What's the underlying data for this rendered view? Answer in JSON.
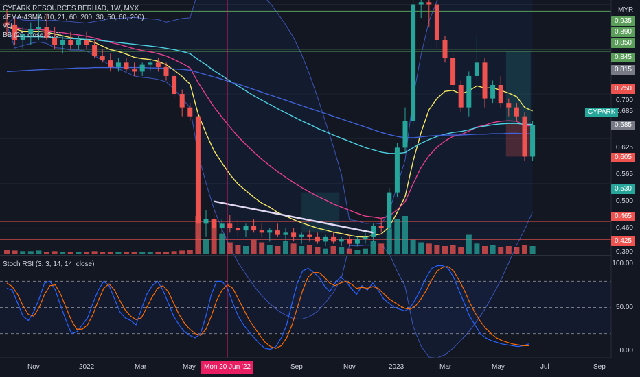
{
  "header": {
    "line1": "CYPARK RESOURCES BERHAD, 1W, MYX",
    "line2": "4EMA-4SMA (10, 21, 60, 200, 30, 50, 60, 200)",
    "line3": "Vol",
    "line4": "BB (20, close, 2, 0)"
  },
  "stoch_label": "Stoch RSI (3, 3, 14, 14, close)",
  "price_axis": {
    "unit": "MYR",
    "ticks": [
      "0.935",
      "0.890",
      "0.850",
      "0.845",
      "0.815",
      "0.750",
      "0.700",
      "0.685",
      "0.685",
      "0.625",
      "0.605",
      "0.565",
      "0.530",
      "0.500",
      "0.465",
      "0.460",
      "0.425",
      "0.390"
    ],
    "symbol_tag": "CYPARK"
  },
  "stoch_axis": {
    "ticks": [
      "100.00",
      "50.00",
      "0.00"
    ]
  },
  "time_axis": {
    "ticks": [
      "Nov",
      "2022",
      "Mar",
      "May",
      "Sep",
      "Nov",
      "2023",
      "Mar",
      "May",
      "Jul",
      "Sep"
    ],
    "crosshair_label": "Mon 20 Jun '22"
  },
  "chart_data": [
    {
      "type": "candlestick",
      "title": "CYPARK RESOURCES BERHAD, 1W, MYX",
      "ylabel": "MYR",
      "ylim": [
        0.39,
        0.96
      ],
      "colors": {
        "up": "#26a69a",
        "down": "#ef5350"
      },
      "candles": [
        {
          "o": 0.91,
          "h": 0.94,
          "l": 0.88,
          "c": 0.905
        },
        {
          "o": 0.905,
          "h": 0.92,
          "l": 0.86,
          "c": 0.87
        },
        {
          "o": 0.87,
          "h": 0.9,
          "l": 0.85,
          "c": 0.885
        },
        {
          "o": 0.885,
          "h": 0.91,
          "l": 0.86,
          "c": 0.895
        },
        {
          "o": 0.895,
          "h": 0.93,
          "l": 0.87,
          "c": 0.9
        },
        {
          "o": 0.9,
          "h": 0.93,
          "l": 0.87,
          "c": 0.875
        },
        {
          "o": 0.875,
          "h": 0.9,
          "l": 0.85,
          "c": 0.86
        },
        {
          "o": 0.86,
          "h": 0.88,
          "l": 0.84,
          "c": 0.87
        },
        {
          "o": 0.87,
          "h": 0.89,
          "l": 0.85,
          "c": 0.86
        },
        {
          "o": 0.86,
          "h": 0.88,
          "l": 0.85,
          "c": 0.87
        },
        {
          "o": 0.87,
          "h": 0.89,
          "l": 0.85,
          "c": 0.86
        },
        {
          "o": 0.86,
          "h": 0.87,
          "l": 0.83,
          "c": 0.835
        },
        {
          "o": 0.835,
          "h": 0.85,
          "l": 0.82,
          "c": 0.825
        },
        {
          "o": 0.825,
          "h": 0.84,
          "l": 0.8,
          "c": 0.81
        },
        {
          "o": 0.81,
          "h": 0.83,
          "l": 0.8,
          "c": 0.82
        },
        {
          "o": 0.82,
          "h": 0.83,
          "l": 0.8,
          "c": 0.805
        },
        {
          "o": 0.805,
          "h": 0.82,
          "l": 0.79,
          "c": 0.8
        },
        {
          "o": 0.8,
          "h": 0.82,
          "l": 0.79,
          "c": 0.815
        },
        {
          "o": 0.815,
          "h": 0.83,
          "l": 0.8,
          "c": 0.82
        },
        {
          "o": 0.82,
          "h": 0.83,
          "l": 0.8,
          "c": 0.81
        },
        {
          "o": 0.81,
          "h": 0.82,
          "l": 0.78,
          "c": 0.79
        },
        {
          "o": 0.79,
          "h": 0.8,
          "l": 0.74,
          "c": 0.75
        },
        {
          "o": 0.75,
          "h": 0.76,
          "l": 0.7,
          "c": 0.72
        },
        {
          "o": 0.72,
          "h": 0.73,
          "l": 0.69,
          "c": 0.7
        },
        {
          "o": 0.7,
          "h": 0.71,
          "l": 0.42,
          "c": 0.46
        },
        {
          "o": 0.46,
          "h": 0.49,
          "l": 0.43,
          "c": 0.47
        },
        {
          "o": 0.47,
          "h": 0.49,
          "l": 0.44,
          "c": 0.45
        },
        {
          "o": 0.45,
          "h": 0.47,
          "l": 0.43,
          "c": 0.46
        },
        {
          "o": 0.46,
          "h": 0.48,
          "l": 0.44,
          "c": 0.45
        },
        {
          "o": 0.45,
          "h": 0.47,
          "l": 0.43,
          "c": 0.445
        },
        {
          "o": 0.445,
          "h": 0.46,
          "l": 0.43,
          "c": 0.455
        },
        {
          "o": 0.455,
          "h": 0.47,
          "l": 0.44,
          "c": 0.445
        },
        {
          "o": 0.445,
          "h": 0.46,
          "l": 0.43,
          "c": 0.44
        },
        {
          "o": 0.44,
          "h": 0.45,
          "l": 0.42,
          "c": 0.445
        },
        {
          "o": 0.445,
          "h": 0.46,
          "l": 0.43,
          "c": 0.435
        },
        {
          "o": 0.435,
          "h": 0.45,
          "l": 0.42,
          "c": 0.44
        },
        {
          "o": 0.44,
          "h": 0.45,
          "l": 0.42,
          "c": 0.43
        },
        {
          "o": 0.43,
          "h": 0.44,
          "l": 0.415,
          "c": 0.435
        },
        {
          "o": 0.435,
          "h": 0.445,
          "l": 0.42,
          "c": 0.43
        },
        {
          "o": 0.43,
          "h": 0.44,
          "l": 0.415,
          "c": 0.42
        },
        {
          "o": 0.42,
          "h": 0.435,
          "l": 0.41,
          "c": 0.43
        },
        {
          "o": 0.43,
          "h": 0.44,
          "l": 0.415,
          "c": 0.42
        },
        {
          "o": 0.42,
          "h": 0.43,
          "l": 0.41,
          "c": 0.425
        },
        {
          "o": 0.425,
          "h": 0.435,
          "l": 0.41,
          "c": 0.415
        },
        {
          "o": 0.415,
          "h": 0.43,
          "l": 0.41,
          "c": 0.425
        },
        {
          "o": 0.425,
          "h": 0.44,
          "l": 0.415,
          "c": 0.43
        },
        {
          "o": 0.43,
          "h": 0.46,
          "l": 0.42,
          "c": 0.455
        },
        {
          "o": 0.455,
          "h": 0.47,
          "l": 0.44,
          "c": 0.45
        },
        {
          "o": 0.45,
          "h": 0.54,
          "l": 0.44,
          "c": 0.53
        },
        {
          "o": 0.53,
          "h": 0.64,
          "l": 0.52,
          "c": 0.63
        },
        {
          "o": 0.63,
          "h": 0.72,
          "l": 0.62,
          "c": 0.69
        },
        {
          "o": 0.69,
          "h": 0.96,
          "l": 0.68,
          "c": 0.95
        },
        {
          "o": 0.95,
          "h": 0.96,
          "l": 0.92,
          "c": 0.955
        },
        {
          "o": 0.955,
          "h": 0.96,
          "l": 0.9,
          "c": 0.95
        },
        {
          "o": 0.95,
          "h": 0.96,
          "l": 0.85,
          "c": 0.87
        },
        {
          "o": 0.87,
          "h": 0.88,
          "l": 0.82,
          "c": 0.83
        },
        {
          "o": 0.83,
          "h": 0.84,
          "l": 0.76,
          "c": 0.77
        },
        {
          "o": 0.77,
          "h": 0.78,
          "l": 0.71,
          "c": 0.72
        },
        {
          "o": 0.72,
          "h": 0.8,
          "l": 0.7,
          "c": 0.79
        },
        {
          "o": 0.79,
          "h": 0.88,
          "l": 0.78,
          "c": 0.82
        },
        {
          "o": 0.82,
          "h": 0.83,
          "l": 0.72,
          "c": 0.74
        },
        {
          "o": 0.74,
          "h": 0.78,
          "l": 0.73,
          "c": 0.77
        },
        {
          "o": 0.77,
          "h": 0.79,
          "l": 0.72,
          "c": 0.73
        },
        {
          "o": 0.73,
          "h": 0.74,
          "l": 0.7,
          "c": 0.72
        },
        {
          "o": 0.72,
          "h": 0.73,
          "l": 0.69,
          "c": 0.7
        },
        {
          "o": 0.7,
          "h": 0.71,
          "l": 0.6,
          "c": 0.61
        },
        {
          "o": 0.61,
          "h": 0.69,
          "l": 0.6,
          "c": 0.68
        }
      ],
      "volume": [
        6,
        5,
        4,
        4,
        5,
        3,
        4,
        3,
        3,
        3,
        3,
        4,
        3,
        3,
        3,
        3,
        3,
        3,
        3,
        3,
        3,
        4,
        5,
        6,
        60,
        24,
        55,
        32,
        18,
        14,
        12,
        22,
        18,
        14,
        12,
        20,
        16,
        12,
        14,
        10,
        8,
        12,
        10,
        8,
        6,
        8,
        20,
        16,
        40,
        55,
        60,
        22,
        18,
        16,
        14,
        12,
        14,
        10,
        30,
        16,
        12,
        14,
        10,
        12,
        10,
        14,
        12
      ],
      "ema": [
        {
          "color": "#f5e663",
          "values": [
            0.9,
            0.895,
            0.89,
            0.89,
            0.89,
            0.888,
            0.884,
            0.88,
            0.876,
            0.873,
            0.87,
            0.865,
            0.857,
            0.849,
            0.845,
            0.839,
            0.832,
            0.829,
            0.827,
            0.823,
            0.815,
            0.803,
            0.789,
            0.772,
            0.706,
            0.662,
            0.623,
            0.596,
            0.57,
            0.549,
            0.534,
            0.519,
            0.506,
            0.497,
            0.485,
            0.477,
            0.469,
            0.462,
            0.456,
            0.45,
            0.446,
            0.441,
            0.438,
            0.434,
            0.431,
            0.43,
            0.434,
            0.437,
            0.453,
            0.485,
            0.521,
            0.6,
            0.664,
            0.715,
            0.74,
            0.756,
            0.758,
            0.75,
            0.757,
            0.768,
            0.763,
            0.764,
            0.758,
            0.752,
            0.744,
            0.72,
            0.712
          ]
        },
        {
          "color": "#e63e8c",
          "values": [
            0.9,
            0.898,
            0.895,
            0.894,
            0.894,
            0.892,
            0.889,
            0.887,
            0.884,
            0.882,
            0.879,
            0.875,
            0.87,
            0.865,
            0.861,
            0.856,
            0.851,
            0.847,
            0.844,
            0.84,
            0.835,
            0.827,
            0.818,
            0.808,
            0.776,
            0.748,
            0.721,
            0.698,
            0.676,
            0.655,
            0.637,
            0.62,
            0.604,
            0.59,
            0.576,
            0.564,
            0.552,
            0.541,
            0.531,
            0.521,
            0.513,
            0.504,
            0.497,
            0.49,
            0.483,
            0.477,
            0.475,
            0.472,
            0.477,
            0.491,
            0.509,
            0.549,
            0.586,
            0.612,
            0.631,
            0.645,
            0.655,
            0.659,
            0.667,
            0.676,
            0.68,
            0.686,
            0.689,
            0.69,
            0.689,
            0.679,
            0.679
          ]
        },
        {
          "color": "#4dd0e1",
          "values": [
            0.88,
            0.879,
            0.878,
            0.878,
            0.878,
            0.877,
            0.876,
            0.875,
            0.874,
            0.873,
            0.872,
            0.871,
            0.869,
            0.867,
            0.865,
            0.863,
            0.861,
            0.859,
            0.857,
            0.855,
            0.852,
            0.849,
            0.845,
            0.84,
            0.827,
            0.815,
            0.802,
            0.791,
            0.779,
            0.768,
            0.757,
            0.746,
            0.736,
            0.727,
            0.717,
            0.708,
            0.699,
            0.69,
            0.682,
            0.673,
            0.666,
            0.658,
            0.651,
            0.644,
            0.637,
            0.63,
            0.625,
            0.62,
            0.617,
            0.617,
            0.619,
            0.63,
            0.64,
            0.648,
            0.655,
            0.66,
            0.664,
            0.666,
            0.67,
            0.675,
            0.678,
            0.681,
            0.683,
            0.684,
            0.684,
            0.682,
            0.682
          ]
        },
        {
          "color": "#3f62d8",
          "values": [
            0.8,
            0.801,
            0.802,
            0.803,
            0.804,
            0.805,
            0.806,
            0.806,
            0.807,
            0.808,
            0.808,
            0.809,
            0.809,
            0.809,
            0.809,
            0.809,
            0.809,
            0.809,
            0.808,
            0.808,
            0.807,
            0.806,
            0.805,
            0.803,
            0.798,
            0.793,
            0.788,
            0.783,
            0.777,
            0.772,
            0.766,
            0.76,
            0.754,
            0.748,
            0.742,
            0.736,
            0.73,
            0.724,
            0.718,
            0.712,
            0.706,
            0.7,
            0.694,
            0.688,
            0.682,
            0.676,
            0.67,
            0.664,
            0.659,
            0.655,
            0.652,
            0.652,
            0.654,
            0.656,
            0.657,
            0.658,
            0.658,
            0.658,
            0.659,
            0.66,
            0.66,
            0.661,
            0.661,
            0.662,
            0.662,
            0.661,
            0.661
          ]
        }
      ],
      "horizontal_levels": [
        {
          "value": 0.935,
          "color": "#5a9e5a"
        },
        {
          "value": 0.85,
          "color": "#5a9e5a"
        },
        {
          "value": 0.845,
          "color": "#5a9e5a"
        },
        {
          "value": 0.685,
          "color": "#5a9e5a"
        },
        {
          "value": 0.465,
          "color": "#ef5350"
        },
        {
          "value": 0.425,
          "color": "#ef5350"
        }
      ],
      "trendline": {
        "from": {
          "index": 26,
          "value": 0.51
        },
        "to": {
          "index": 46,
          "value": 0.44
        },
        "color": "#e1d8f3"
      }
    },
    {
      "type": "line",
      "title": "Stoch RSI (3, 3, 14, 14, close)",
      "ylim": [
        0,
        100
      ],
      "levels": [
        80,
        50,
        20
      ],
      "series": [
        {
          "color": "#2962ff",
          "values": [
            72,
            70,
            55,
            40,
            35,
            45,
            60,
            78,
            80,
            70,
            52,
            35,
            20,
            22,
            30,
            38,
            55,
            70,
            80,
            75,
            60,
            45,
            38,
            35,
            30,
            48,
            65,
            75,
            80,
            70,
            55,
            40,
            30,
            22,
            18,
            15,
            20,
            40,
            65,
            80,
            80,
            72,
            55,
            40,
            30,
            22,
            15,
            8,
            3,
            2,
            5,
            15,
            30,
            55,
            78,
            92,
            95,
            90,
            85,
            75,
            68,
            78,
            85,
            80,
            72,
            65,
            75,
            70,
            78,
            70,
            60,
            55,
            50,
            48,
            46,
            50,
            60,
            72,
            85,
            95,
            98,
            98,
            95,
            85,
            70,
            55,
            40,
            30,
            20,
            15,
            12,
            10,
            8,
            7,
            6,
            5,
            6,
            8
          ]
        },
        {
          "color": "#ff6d00",
          "values": [
            78,
            74,
            65,
            52,
            42,
            40,
            50,
            65,
            75,
            76,
            65,
            50,
            35,
            25,
            25,
            30,
            42,
            58,
            72,
            77,
            70,
            58,
            47,
            40,
            36,
            38,
            50,
            62,
            72,
            75,
            68,
            55,
            42,
            32,
            25,
            20,
            18,
            25,
            40,
            58,
            70,
            76,
            72,
            60,
            48,
            36,
            27,
            18,
            10,
            5,
            3,
            6,
            15,
            30,
            50,
            70,
            85,
            90,
            90,
            85,
            78,
            75,
            78,
            80,
            77,
            72,
            73,
            72,
            74,
            72,
            66,
            60,
            56,
            52,
            49,
            48,
            52,
            60,
            70,
            82,
            92,
            96,
            97,
            92,
            82,
            70,
            56,
            44,
            34,
            26,
            20,
            15,
            12,
            10,
            8,
            7,
            6,
            6
          ]
        }
      ]
    }
  ]
}
